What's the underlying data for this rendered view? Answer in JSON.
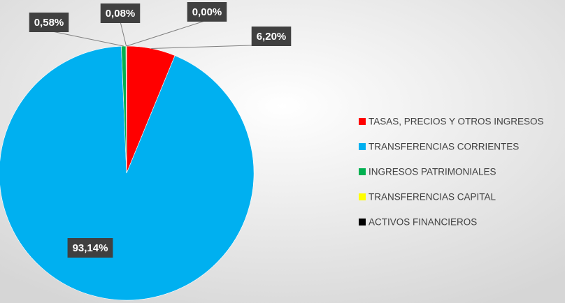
{
  "chart_data": {
    "type": "pie",
    "categories": [
      "TASAS, PRECIOS Y OTROS INGRESOS",
      "TRANSFERENCIAS CORRIENTES",
      "INGRESOS PATRIMONIALES",
      "TRANSFERENCIAS CAPITAL",
      "ACTIVOS FINANCIEROS"
    ],
    "values": [
      6.2,
      93.14,
      0.58,
      0.08,
      0.0
    ],
    "value_labels": [
      "6,20%",
      "93,14%",
      "0,58%",
      "0,08%",
      "0,00%"
    ],
    "colors": [
      "#ff0000",
      "#00b0f0",
      "#00b050",
      "#ffff00",
      "#000000"
    ],
    "legend": "right"
  }
}
